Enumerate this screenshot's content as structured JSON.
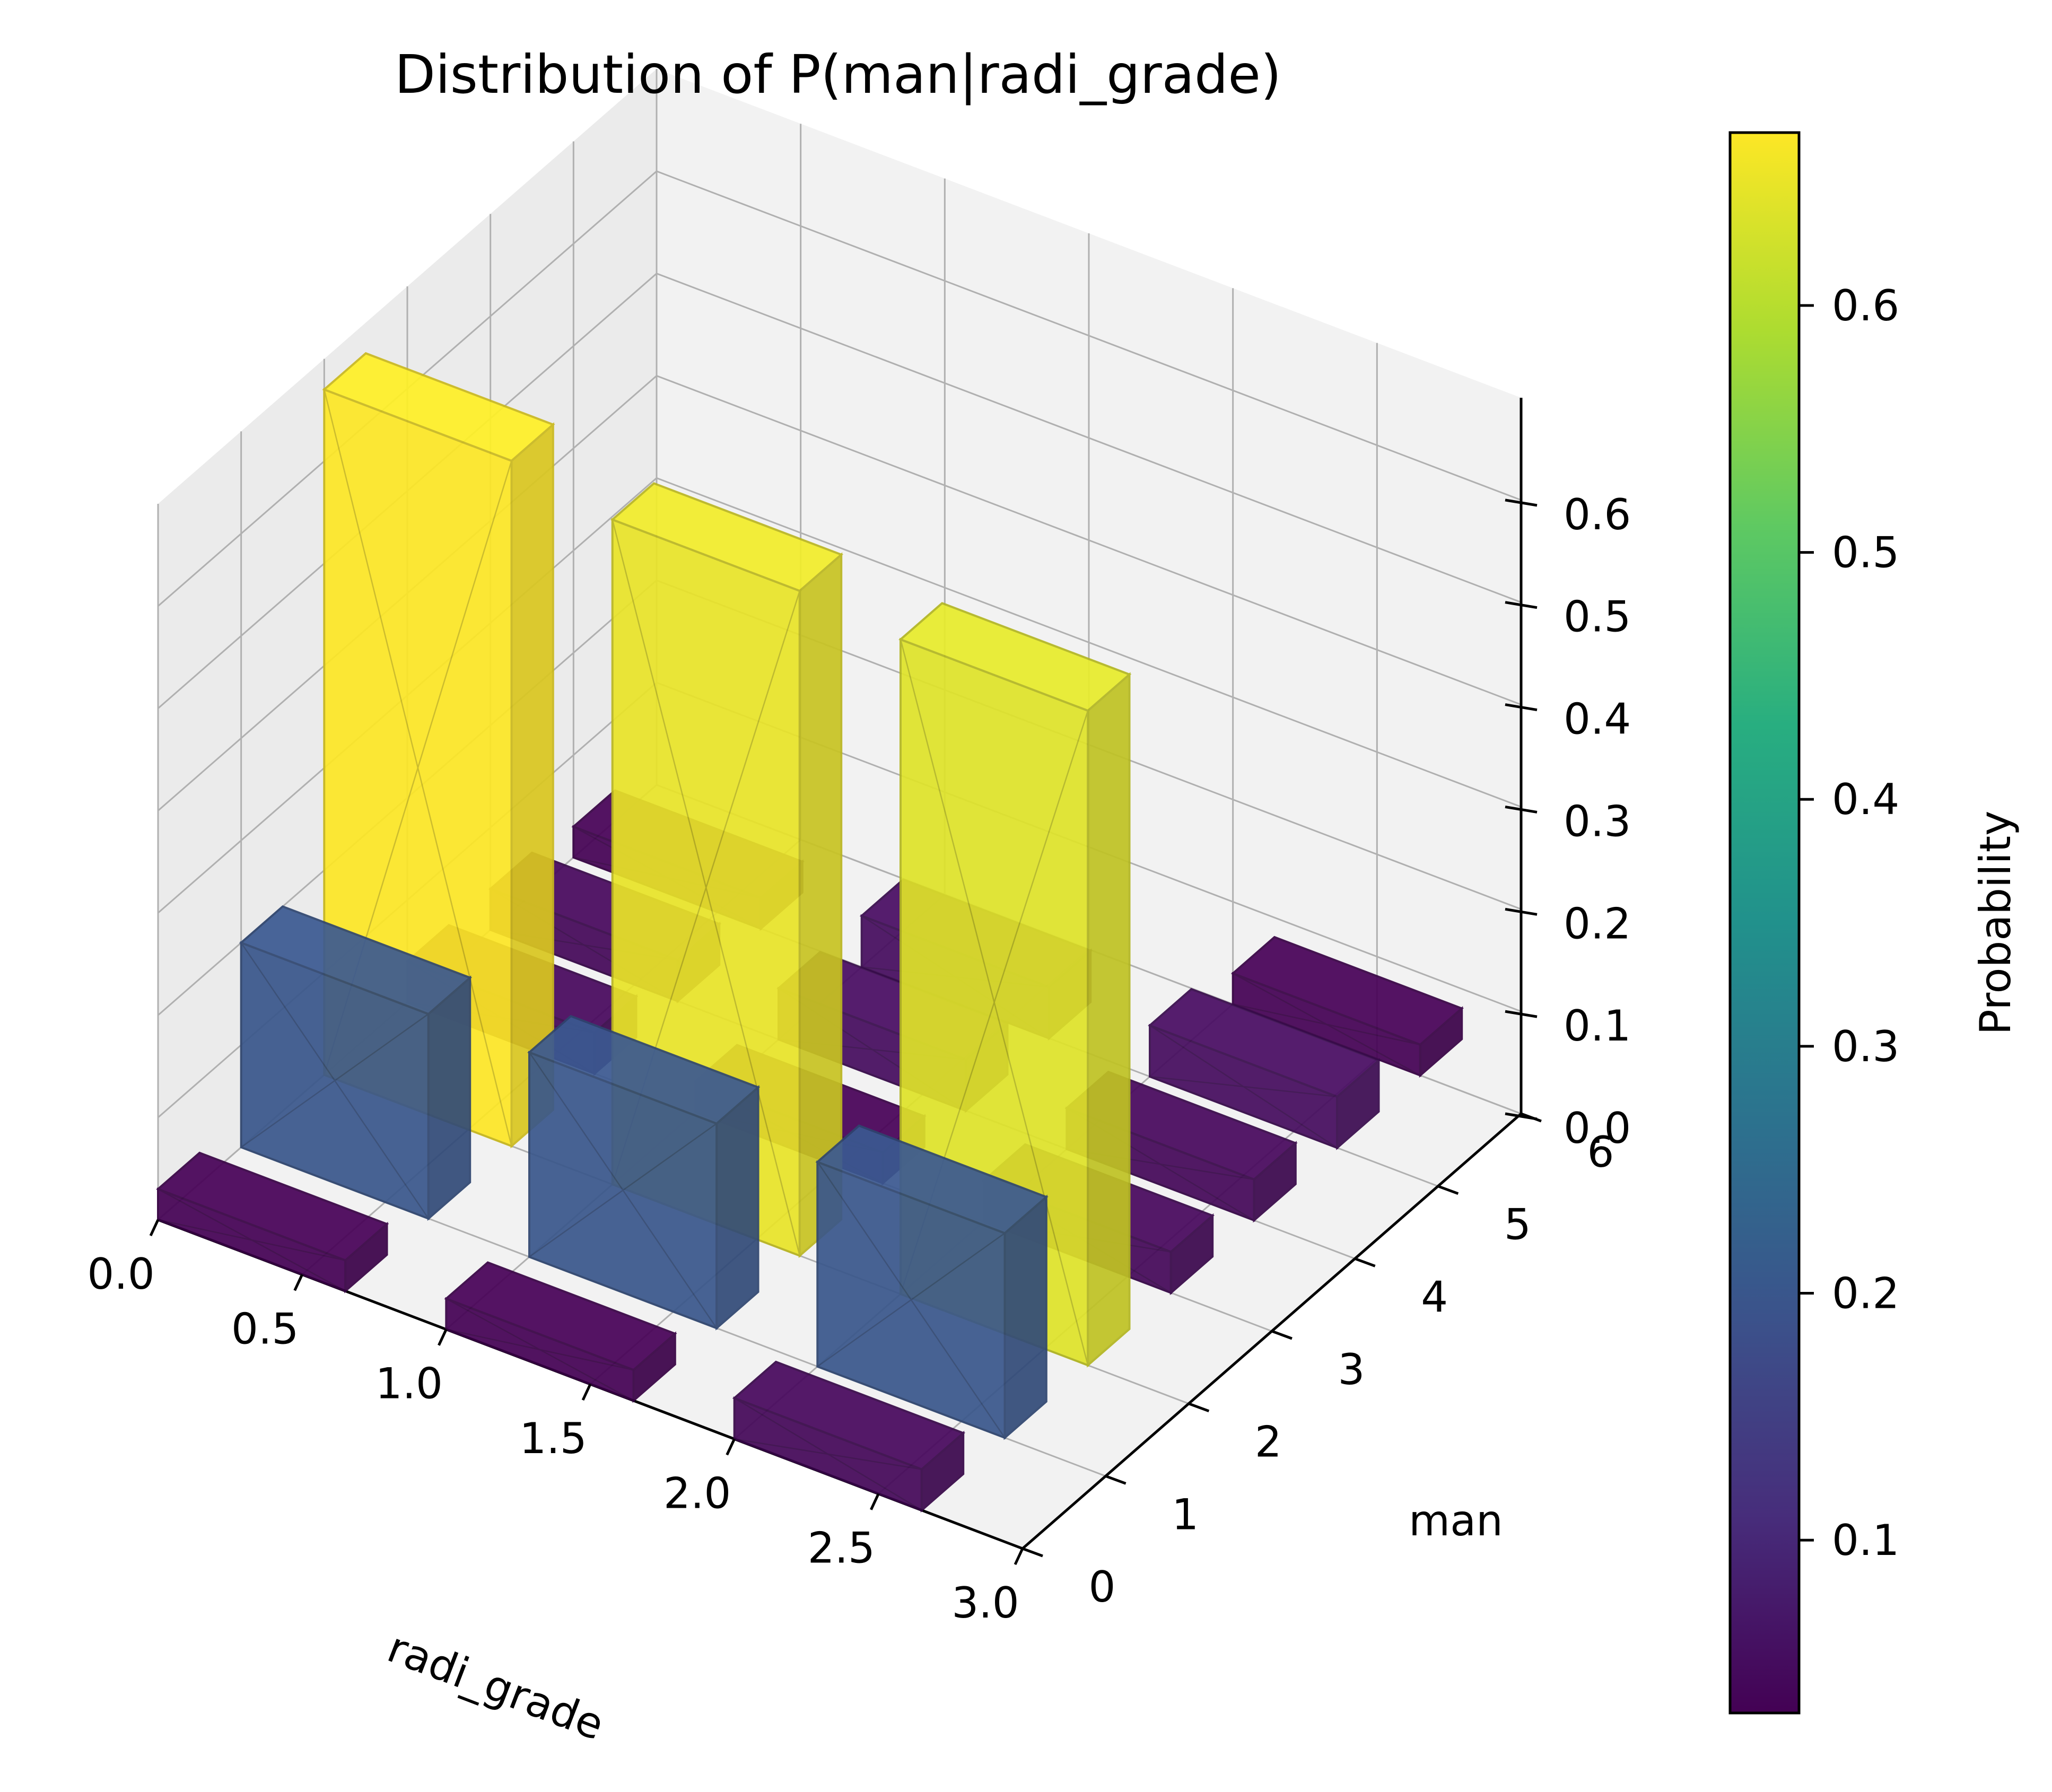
{
  "chart_data": {
    "type": "bar3d",
    "title": "Distribution of P(man|radi_grade)",
    "xlabel": "radi_grade",
    "ylabel": "man",
    "zlabel": "",
    "colorbar_label": "Probability",
    "x_ticks": [
      "0.0",
      "0.5",
      "1.0",
      "1.5",
      "2.0",
      "2.5",
      "3.0"
    ],
    "y_ticks": [
      "0",
      "1",
      "2",
      "3",
      "4",
      "5",
      "6"
    ],
    "z_ticks": [
      "0.0",
      "0.1",
      "0.2",
      "0.3",
      "0.4",
      "0.5",
      "0.6"
    ],
    "colorbar_ticks": [
      "0.1",
      "0.2",
      "0.3",
      "0.4",
      "0.5",
      "0.6"
    ],
    "xlim": [
      0.0,
      3.0
    ],
    "ylim": [
      0,
      6
    ],
    "zlim": [
      0.0,
      0.6
    ],
    "colorbar_range": [
      0.03,
      0.67
    ],
    "colormap": "viridis",
    "grid": true,
    "bars": [
      {
        "radi_grade": 0,
        "man": 0,
        "probability": 0.03
      },
      {
        "radi_grade": 0,
        "man": 1,
        "probability": 0.2
      },
      {
        "radi_grade": 0,
        "man": 2,
        "probability": 0.67
      },
      {
        "radi_grade": 0,
        "man": 3,
        "probability": 0.04
      },
      {
        "radi_grade": 0,
        "man": 4,
        "probability": 0.04
      },
      {
        "radi_grade": 0,
        "man": 5,
        "probability": 0.03
      },
      {
        "radi_grade": 1,
        "man": 0,
        "probability": 0.03
      },
      {
        "radi_grade": 1,
        "man": 1,
        "probability": 0.2
      },
      {
        "radi_grade": 1,
        "man": 2,
        "probability": 0.65
      },
      {
        "radi_grade": 1,
        "man": 3,
        "probability": 0.03
      },
      {
        "radi_grade": 1,
        "man": 4,
        "probability": 0.05
      },
      {
        "radi_grade": 1,
        "man": 5,
        "probability": 0.05
      },
      {
        "radi_grade": 2,
        "man": 0,
        "probability": 0.04
      },
      {
        "radi_grade": 2,
        "man": 1,
        "probability": 0.2
      },
      {
        "radi_grade": 2,
        "man": 2,
        "probability": 0.64
      },
      {
        "radi_grade": 2,
        "man": 3,
        "probability": 0.04
      },
      {
        "radi_grade": 2,
        "man": 4,
        "probability": 0.04
      },
      {
        "radi_grade": 2,
        "man": 5,
        "probability": 0.05
      },
      {
        "radi_grade": 2,
        "man": 6,
        "probability": 0.03
      }
    ]
  }
}
